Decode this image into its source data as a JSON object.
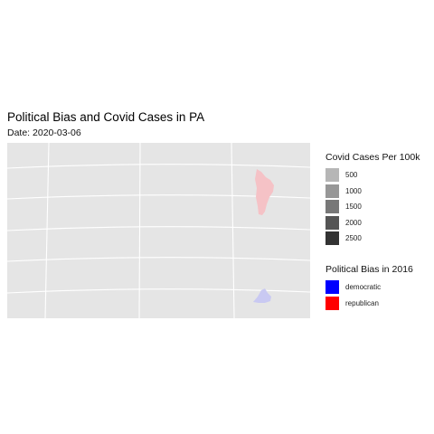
{
  "title": "Political Bias and Covid Cases in PA",
  "subtitle": "Date: 2020-03-06",
  "map": {
    "background_color": "#e5e5e5",
    "graticule_color": "#ffffff",
    "regions": [
      {
        "name": "republican",
        "color": "#f5c2c6"
      },
      {
        "name": "democratic",
        "color": "#c9c9f2"
      }
    ]
  },
  "legend_cases": {
    "title": "Covid Cases Per 100k",
    "items": [
      {
        "label": "500",
        "color": "#b6b6b6"
      },
      {
        "label": "1000",
        "color": "#979797"
      },
      {
        "label": "1500",
        "color": "#787878"
      },
      {
        "label": "2000",
        "color": "#555555"
      },
      {
        "label": "2500",
        "color": "#333333"
      }
    ]
  },
  "legend_bias": {
    "title": "Political Bias in 2016",
    "items": [
      {
        "label": "democratic",
        "color": "#0000ff"
      },
      {
        "label": "republican",
        "color": "#ff0000"
      }
    ]
  }
}
